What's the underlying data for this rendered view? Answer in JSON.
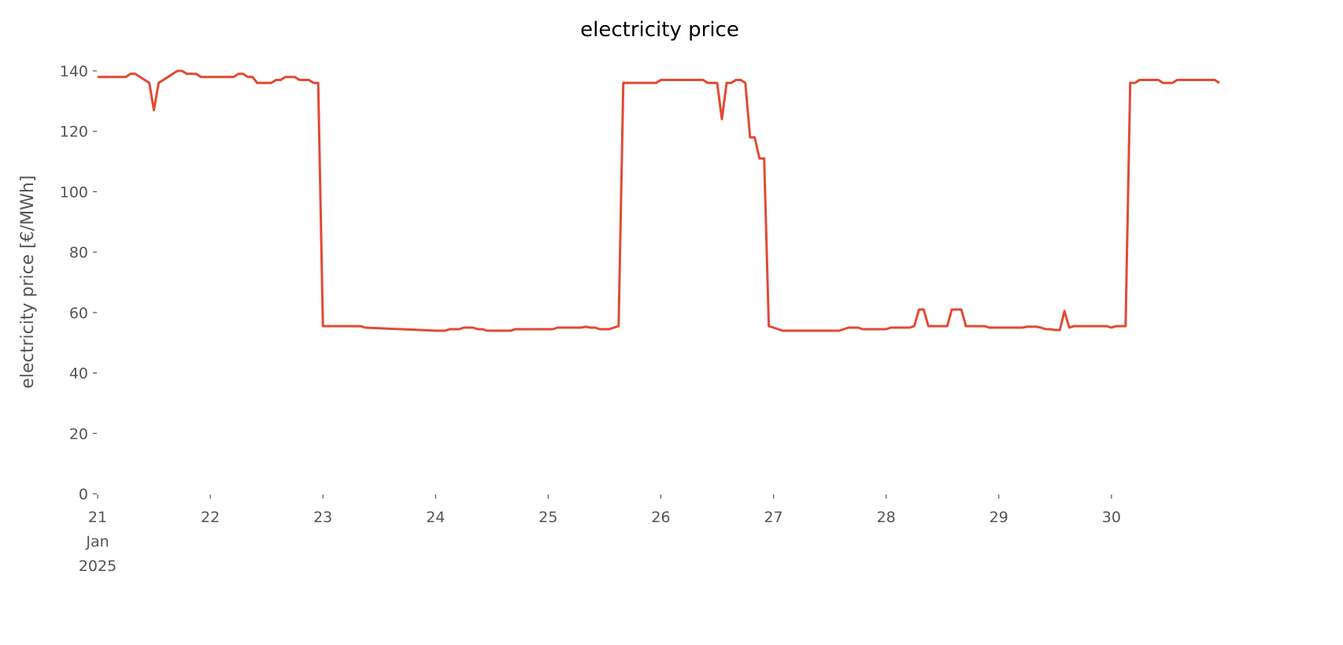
{
  "chart_data": {
    "type": "line",
    "title": "electricity price",
    "ylabel": "electricity price [€/MWh]",
    "xlim": [
      "2025-01-21T00:00",
      "2025-01-30T23:00"
    ],
    "xticks": [
      {
        "value": "2025-01-21T00:00",
        "label": "21\nJan\n2025"
      },
      {
        "value": "2025-01-22T00:00",
        "label": "22"
      },
      {
        "value": "2025-01-23T00:00",
        "label": "23"
      },
      {
        "value": "2025-01-24T00:00",
        "label": "24"
      },
      {
        "value": "2025-01-25T00:00",
        "label": "25"
      },
      {
        "value": "2025-01-26T00:00",
        "label": "26"
      },
      {
        "value": "2025-01-27T00:00",
        "label": "27"
      },
      {
        "value": "2025-01-28T00:00",
        "label": "28"
      },
      {
        "value": "2025-01-29T00:00",
        "label": "29"
      },
      {
        "value": "2025-01-30T00:00",
        "label": "30"
      }
    ],
    "ylim": [
      0,
      140
    ],
    "yticks": [
      0,
      20,
      40,
      60,
      80,
      100,
      120,
      140
    ],
    "grid": false,
    "x": [
      "2025-01-21T00:00",
      "2025-01-21T06:00",
      "2025-01-21T07:00",
      "2025-01-21T08:00",
      "2025-01-21T11:00",
      "2025-01-21T12:00",
      "2025-01-21T13:00",
      "2025-01-21T17:00",
      "2025-01-21T18:00",
      "2025-01-21T19:00",
      "2025-01-21T21:00",
      "2025-01-21T22:00",
      "2025-01-22T05:00",
      "2025-01-22T06:00",
      "2025-01-22T07:00",
      "2025-01-22T08:00",
      "2025-01-22T09:00",
      "2025-01-22T10:00",
      "2025-01-22T13:00",
      "2025-01-22T14:00",
      "2025-01-22T15:00",
      "2025-01-22T16:00",
      "2025-01-22T18:00",
      "2025-01-22T19:00",
      "2025-01-22T21:00",
      "2025-01-22T22:00",
      "2025-01-22T23:00",
      "2025-01-23T00:00",
      "2025-01-23T08:00",
      "2025-01-23T09:00",
      "2025-01-24T00:00",
      "2025-01-24T02:00",
      "2025-01-24T03:00",
      "2025-01-24T05:00",
      "2025-01-24T06:00",
      "2025-01-24T08:00",
      "2025-01-24T09:00",
      "2025-01-24T10:00",
      "2025-01-24T11:00",
      "2025-01-24T16:00",
      "2025-01-24T17:00",
      "2025-01-25T01:00",
      "2025-01-25T02:00",
      "2025-01-25T07:00",
      "2025-01-25T08:00",
      "2025-01-25T09:00",
      "2025-01-25T10:00",
      "2025-01-25T11:00",
      "2025-01-25T13:00",
      "2025-01-25T14:00",
      "2025-01-25T15:00",
      "2025-01-25T16:00",
      "2025-01-25T23:00",
      "2025-01-26T00:00",
      "2025-01-26T09:00",
      "2025-01-26T10:00",
      "2025-01-26T12:00",
      "2025-01-26T13:00",
      "2025-01-26T14:00",
      "2025-01-26T15:00",
      "2025-01-26T16:00",
      "2025-01-26T17:00",
      "2025-01-26T18:00",
      "2025-01-26T19:00",
      "2025-01-26T20:00",
      "2025-01-26T21:00",
      "2025-01-26T22:00",
      "2025-01-26T23:00",
      "2025-01-27T00:00",
      "2025-01-27T01:00",
      "2025-01-27T02:00",
      "2025-01-27T14:00",
      "2025-01-27T15:00",
      "2025-01-27T16:00",
      "2025-01-27T18:00",
      "2025-01-27T19:00",
      "2025-01-28T00:00",
      "2025-01-28T01:00",
      "2025-01-28T05:00",
      "2025-01-28T06:00",
      "2025-01-28T07:00",
      "2025-01-28T08:00",
      "2025-01-28T09:00",
      "2025-01-28T13:00",
      "2025-01-28T14:00",
      "2025-01-28T16:00",
      "2025-01-28T17:00",
      "2025-01-28T21:00",
      "2025-01-28T22:00",
      "2025-01-29T05:00",
      "2025-01-29T06:00",
      "2025-01-29T08:00",
      "2025-01-29T09:00",
      "2025-01-29T10:00",
      "2025-01-29T11:00",
      "2025-01-29T12:00",
      "2025-01-29T13:00",
      "2025-01-29T14:00",
      "2025-01-29T15:00",
      "2025-01-29T16:00",
      "2025-01-29T23:00",
      "2025-01-30T00:00",
      "2025-01-30T01:00",
      "2025-01-30T03:00",
      "2025-01-30T04:00",
      "2025-01-30T05:00",
      "2025-01-30T06:00",
      "2025-01-30T10:00",
      "2025-01-30T11:00",
      "2025-01-30T13:00",
      "2025-01-30T14:00",
      "2025-01-30T22:00",
      "2025-01-30T23:00"
    ],
    "series": [
      {
        "name": "electricity price",
        "color": "#e24a33",
        "values": [
          138,
          138,
          139,
          139,
          136,
          127,
          136,
          140,
          140,
          139,
          139,
          138,
          138,
          139,
          139,
          138,
          138,
          136,
          136,
          137,
          137,
          138,
          138,
          137,
          137,
          136,
          136,
          55.5,
          55.5,
          55,
          54,
          54,
          54.5,
          54.5,
          55,
          55,
          54.5,
          54.5,
          54,
          54,
          54.5,
          54.5,
          55,
          55,
          55.3,
          55,
          55,
          54.5,
          54.5,
          55,
          55.5,
          136,
          136,
          137,
          137,
          136,
          136,
          124,
          136,
          136,
          137,
          137,
          136,
          118,
          118,
          111,
          111,
          55.5,
          55,
          54.5,
          54,
          54,
          54.5,
          55,
          55,
          54.5,
          54.5,
          55,
          55,
          55.5,
          61,
          61,
          55.5,
          55.5,
          61,
          61,
          55.5,
          55.5,
          55,
          55,
          55.3,
          55.3,
          55,
          54.5,
          54.5,
          54.2,
          54.2,
          60.5,
          55,
          55.5,
          55.5,
          55,
          55.5,
          55.5,
          136,
          136,
          137,
          137,
          136,
          136,
          137,
          137,
          136
        ]
      }
    ]
  }
}
